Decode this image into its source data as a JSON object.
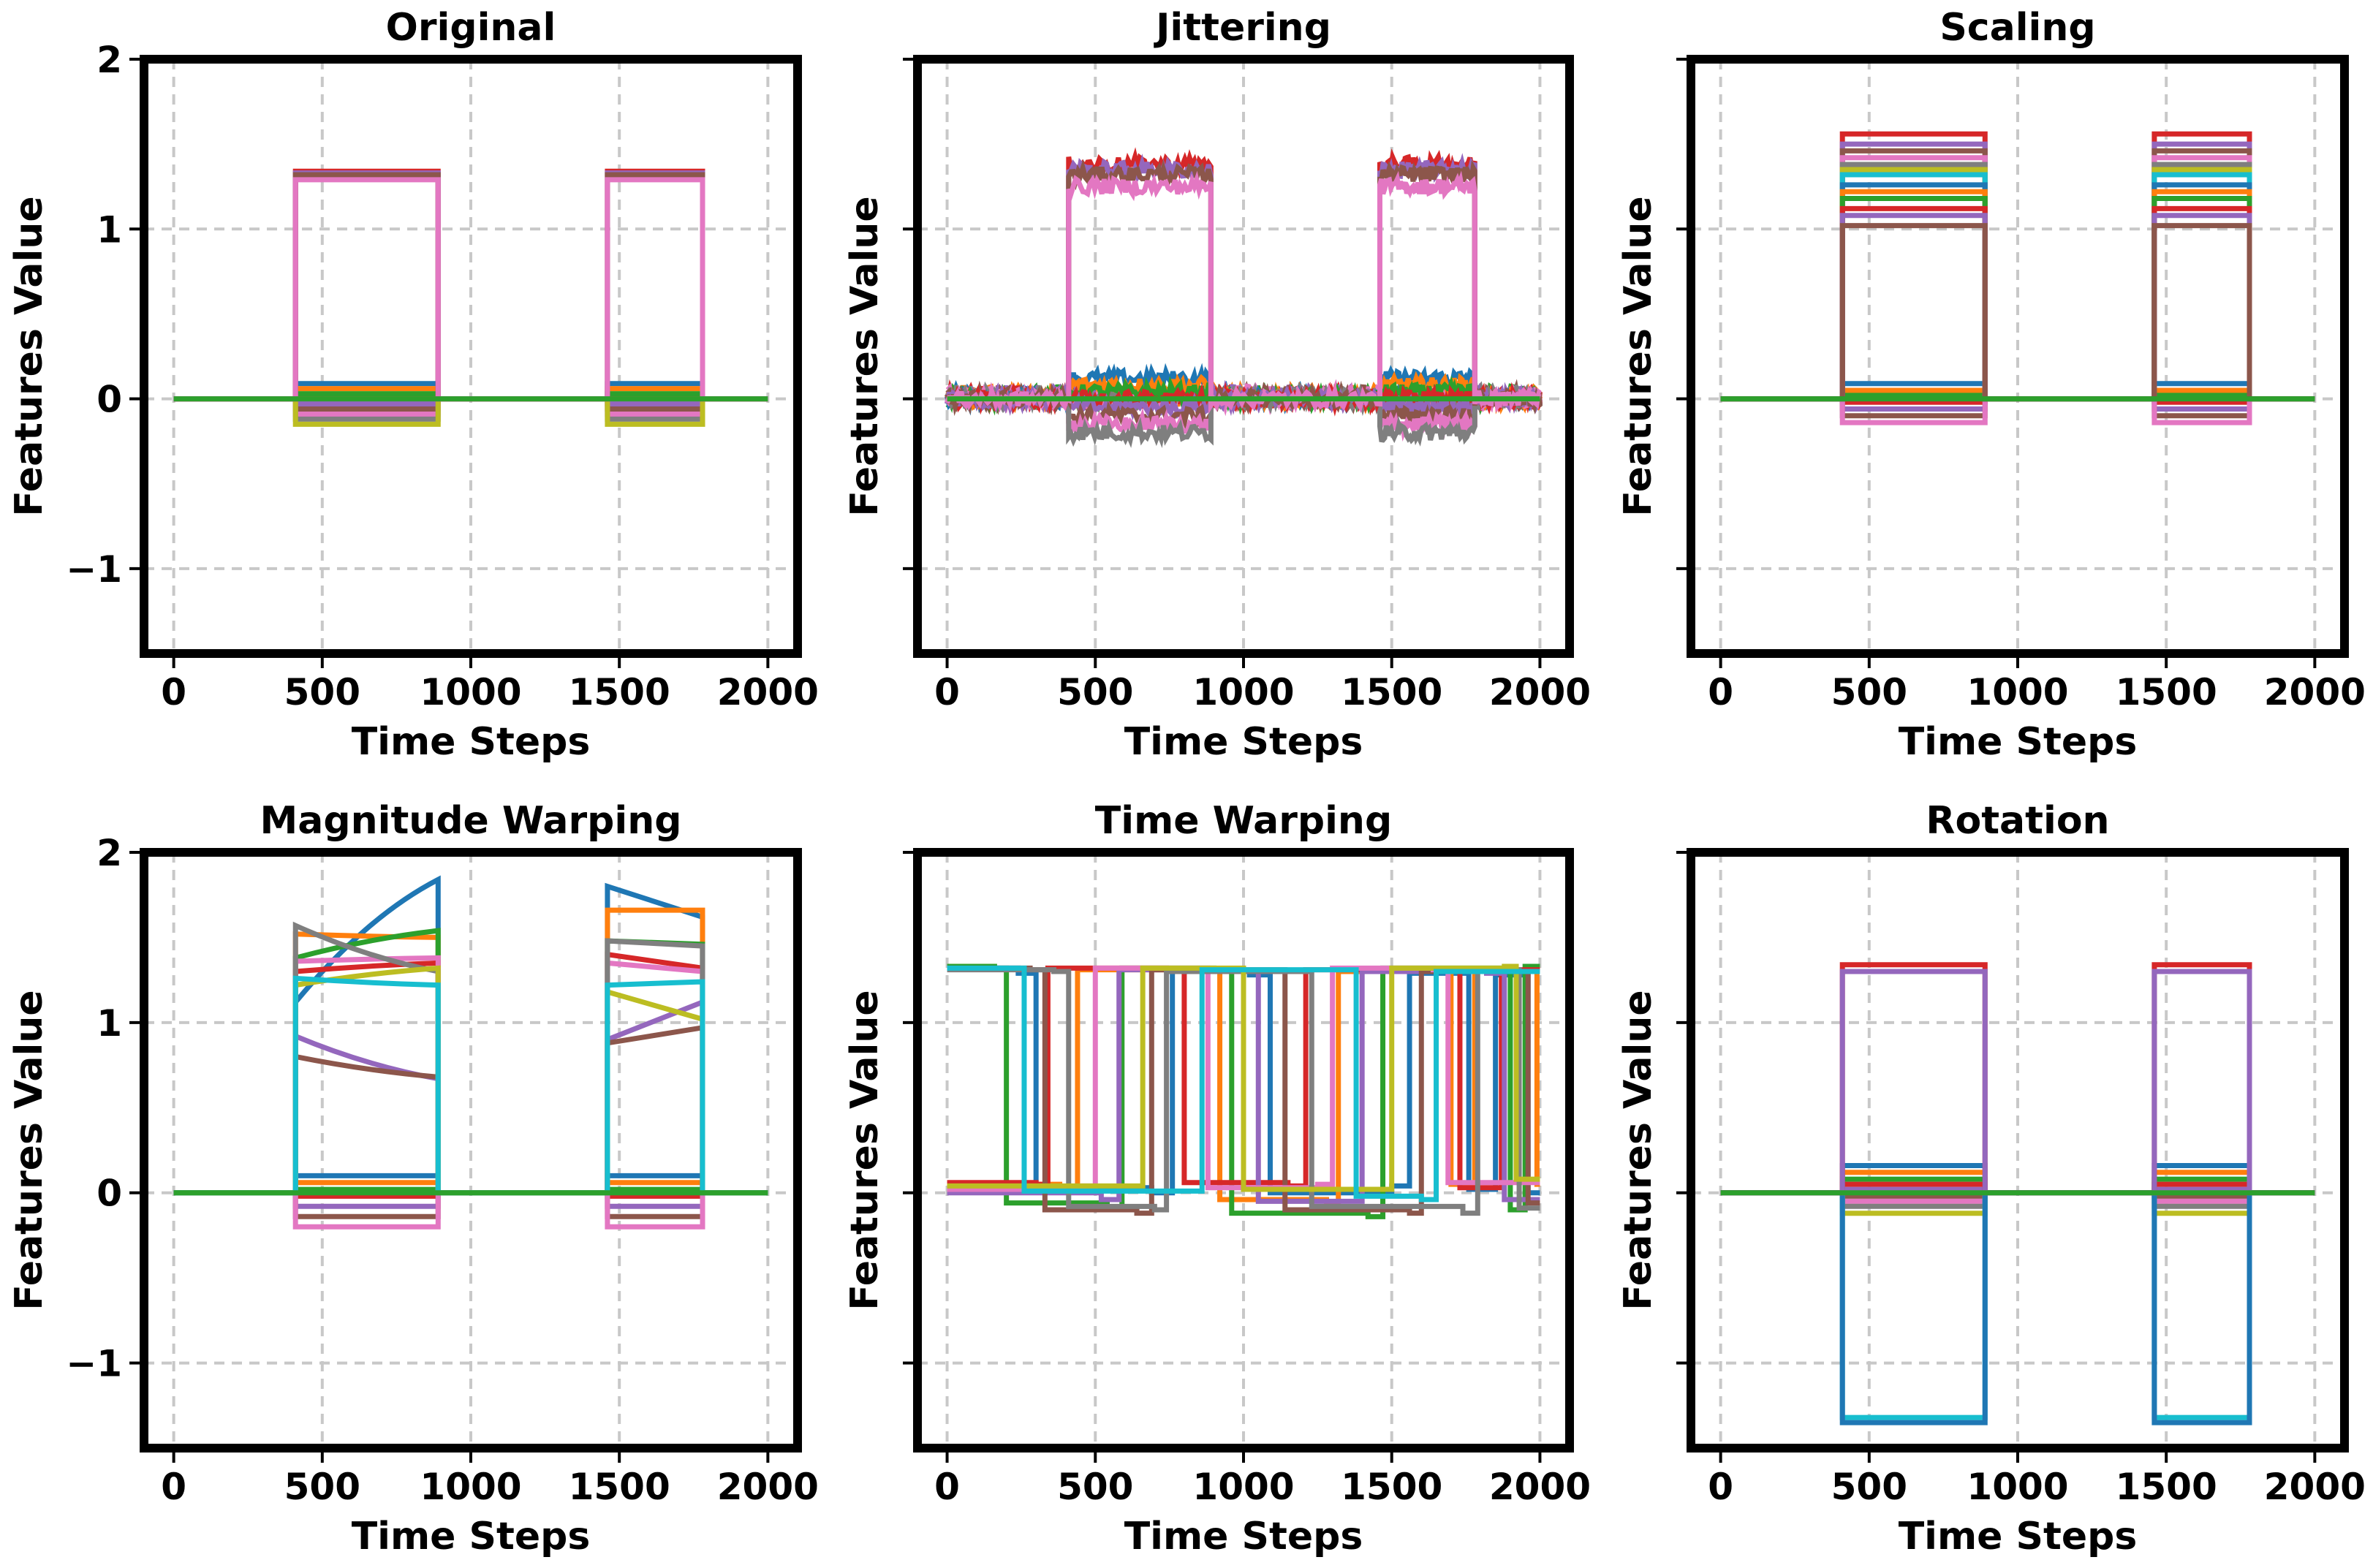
{
  "chart_data": [
    {
      "type": "line",
      "title": "Original",
      "xlabel": "Time Steps",
      "ylabel": "Features Value",
      "xlim": [
        -100,
        2100
      ],
      "ylim": [
        -1.5,
        2.0
      ],
      "xticks": [
        0,
        500,
        1000,
        1500,
        2000
      ],
      "yticks": [
        -1,
        0,
        1,
        2
      ],
      "show_ytick_labels": true,
      "grid": true,
      "pattern": "pulses",
      "pulses": [
        [
          410,
          890
        ],
        [
          1460,
          1780
        ]
      ],
      "pulse_high": [
        1.34,
        1.33,
        1.32,
        1.29
      ],
      "pulse_low": [
        0.09,
        0.06,
        0.03,
        0.0,
        -0.03,
        -0.06,
        -0.09,
        -0.12,
        -0.15
      ]
    },
    {
      "type": "line",
      "title": "Jittering",
      "xlabel": "Time Steps",
      "ylabel": "Features Value",
      "xlim": [
        -100,
        2100
      ],
      "ylim": [
        -1.5,
        2.0
      ],
      "xticks": [
        0,
        500,
        1000,
        1500,
        2000
      ],
      "yticks": [
        -1,
        0,
        1,
        2
      ],
      "show_ytick_labels": false,
      "grid": true,
      "pattern": "pulses",
      "pulses": [
        [
          410,
          890
        ],
        [
          1460,
          1780
        ]
      ],
      "pulse_high": [
        1.38,
        1.35,
        1.32,
        1.25
      ],
      "pulse_low": [
        0.12,
        0.08,
        0.04,
        0.0,
        -0.05,
        -0.1,
        -0.15,
        -0.2
      ],
      "noise": 0.045,
      "baseline_band": [
        -0.06,
        0.08
      ]
    },
    {
      "type": "line",
      "title": "Scaling",
      "xlabel": "Time Steps",
      "ylabel": "Features Value",
      "xlim": [
        -100,
        2100
      ],
      "ylim": [
        -1.5,
        2.0
      ],
      "xticks": [
        0,
        500,
        1000,
        1500,
        2000
      ],
      "yticks": [
        -1,
        0,
        1,
        2
      ],
      "show_ytick_labels": false,
      "grid": true,
      "pattern": "pulses",
      "pulses": [
        [
          410,
          890
        ],
        [
          1460,
          1780
        ]
      ],
      "pulse_high": [
        1.56,
        1.5,
        1.46,
        1.42,
        1.38,
        1.35,
        1.32,
        1.26,
        1.22,
        1.18,
        1.12,
        1.08,
        1.02
      ],
      "pulse_low": [
        0.09,
        0.05,
        0.02,
        -0.02,
        -0.06,
        -0.1,
        -0.14
      ]
    },
    {
      "type": "line",
      "title": "Magnitude Warping",
      "xlabel": "Time Steps",
      "ylabel": "Features Value",
      "xlim": [
        -100,
        2100
      ],
      "ylim": [
        -1.5,
        2.0
      ],
      "xticks": [
        0,
        500,
        1000,
        1500,
        2000
      ],
      "yticks": [
        -1,
        0,
        1,
        2
      ],
      "show_ytick_labels": true,
      "grid": true,
      "pattern": "warped_pulses",
      "pulses": [
        [
          410,
          890
        ],
        [
          1460,
          1780
        ]
      ],
      "warp_high": [
        [
          1.12,
          1.84,
          1.8,
          1.62
        ],
        [
          1.52,
          1.5,
          1.66,
          1.66
        ],
        [
          1.38,
          1.54,
          1.48,
          1.46
        ],
        [
          1.3,
          1.35,
          1.4,
          1.32
        ],
        [
          0.92,
          0.67,
          0.9,
          1.12
        ],
        [
          0.8,
          0.68,
          0.88,
          0.97
        ],
        [
          1.36,
          1.38,
          1.35,
          1.3
        ],
        [
          1.57,
          1.3,
          1.48,
          1.45
        ],
        [
          1.22,
          1.32,
          1.18,
          1.02
        ],
        [
          1.26,
          1.22,
          1.22,
          1.24
        ]
      ],
      "pulse_low": [
        0.1,
        0.06,
        0.02,
        -0.02,
        -0.08,
        -0.14,
        -0.2
      ]
    },
    {
      "type": "line",
      "title": "Time Warping",
      "xlabel": "Time Steps",
      "ylabel": "Features Value",
      "xlim": [
        -100,
        2100
      ],
      "ylim": [
        -1.5,
        2.0
      ],
      "xticks": [
        0,
        500,
        1000,
        1500,
        2000
      ],
      "yticks": [
        -1,
        0,
        1,
        2
      ],
      "show_ytick_labels": false,
      "grid": true,
      "pattern": "square_waves",
      "waves": [
        [
          [
            0,
            1.32
          ],
          [
            240,
            1.29
          ],
          [
            300,
            0.03
          ],
          [
            690,
            0.0
          ],
          [
            760,
            1.3
          ],
          [
            1020,
            1.28
          ],
          [
            1090,
            0.0
          ],
          [
            1500,
            0.04
          ],
          [
            1560,
            1.29
          ],
          [
            1760,
            0.02
          ],
          [
            1850,
            1.28
          ],
          [
            1960,
            0.0
          ]
        ],
        [
          [
            0,
            0.05
          ],
          [
            380,
            0.02
          ],
          [
            440,
            1.31
          ],
          [
            860,
            1.3
          ],
          [
            920,
            -0.04
          ],
          [
            1280,
            -0.06
          ],
          [
            1320,
            1.3
          ],
          [
            1700,
            0.05
          ],
          [
            1780,
            1.3
          ],
          [
            1990,
            0.05
          ]
        ],
        [
          [
            0,
            1.33
          ],
          [
            160,
            1.32
          ],
          [
            200,
            -0.06
          ],
          [
            540,
            -0.1
          ],
          [
            590,
            1.32
          ],
          [
            900,
            1.3
          ],
          [
            960,
            -0.12
          ],
          [
            1420,
            -0.14
          ],
          [
            1470,
            1.32
          ],
          [
            1900,
            -0.1
          ],
          [
            1950,
            1.33
          ]
        ],
        [
          [
            0,
            0.06
          ],
          [
            300,
            0.05
          ],
          [
            340,
            1.32
          ],
          [
            740,
            1.31
          ],
          [
            800,
            0.06
          ],
          [
            1150,
            0.04
          ],
          [
            1210,
            1.31
          ],
          [
            1680,
            1.3
          ],
          [
            1730,
            0.03
          ],
          [
            1870,
            1.31
          ],
          [
            2000,
            1.31
          ]
        ],
        [
          [
            0,
            0.0
          ],
          [
            520,
            -0.04
          ],
          [
            580,
            1.31
          ],
          [
            1000,
            1.3
          ],
          [
            1050,
            -0.05
          ],
          [
            1360,
            -0.05
          ],
          [
            1400,
            1.3
          ],
          [
            1820,
            1.29
          ],
          [
            1880,
            -0.04
          ],
          [
            2000,
            -0.04
          ]
        ],
        [
          [
            0,
            1.32
          ],
          [
            280,
            1.31
          ],
          [
            330,
            -0.1
          ],
          [
            640,
            -0.12
          ],
          [
            690,
            1.31
          ],
          [
            1100,
            1.31
          ],
          [
            1140,
            -0.1
          ],
          [
            1560,
            -0.12
          ],
          [
            1600,
            1.3
          ],
          [
            1960,
            -0.06
          ]
        ],
        [
          [
            0,
            0.02
          ],
          [
            460,
            0.04
          ],
          [
            500,
            1.32
          ],
          [
            820,
            1.32
          ],
          [
            880,
            0.03
          ],
          [
            1250,
            0.05
          ],
          [
            1300,
            1.32
          ],
          [
            1640,
            1.31
          ],
          [
            1690,
            0.06
          ],
          [
            2000,
            0.06
          ]
        ],
        [
          [
            0,
            1.31
          ],
          [
            360,
            1.3
          ],
          [
            410,
            -0.08
          ],
          [
            700,
            -0.1
          ],
          [
            740,
            1.3
          ],
          [
            1170,
            1.3
          ],
          [
            1230,
            -0.08
          ],
          [
            1740,
            -0.12
          ],
          [
            1790,
            1.31
          ],
          [
            1930,
            -0.09
          ]
        ],
        [
          [
            0,
            0.04
          ],
          [
            600,
            0.04
          ],
          [
            660,
            1.32
          ],
          [
            940,
            1.32
          ],
          [
            1000,
            0.02
          ],
          [
            1440,
            0.02
          ],
          [
            1500,
            1.32
          ],
          [
            1880,
            1.33
          ],
          [
            1920,
            0.08
          ],
          [
            2000,
            0.08
          ]
        ],
        [
          [
            0,
            1.32
          ],
          [
            200,
            1.32
          ],
          [
            260,
            0.01
          ],
          [
            800,
            0.01
          ],
          [
            860,
            1.31
          ],
          [
            1320,
            1.31
          ],
          [
            1380,
            -0.02
          ],
          [
            1600,
            -0.04
          ],
          [
            1650,
            1.3
          ],
          [
            2000,
            1.3
          ]
        ]
      ]
    },
    {
      "type": "line",
      "title": "Rotation",
      "xlabel": "Time Steps",
      "ylabel": "Features Value",
      "xlim": [
        -100,
        2100
      ],
      "ylim": [
        -1.5,
        2.0
      ],
      "xticks": [
        0,
        500,
        1000,
        1500,
        2000
      ],
      "yticks": [
        -1,
        0,
        1,
        2
      ],
      "show_ytick_labels": false,
      "grid": true,
      "pattern": "pulses",
      "pulses": [
        [
          410,
          890
        ],
        [
          1460,
          1780
        ]
      ],
      "pulse_high": [
        1.34,
        1.3
      ],
      "pulse_low": [
        0.16,
        0.12,
        0.08,
        0.05,
        0.02,
        -0.02,
        -0.05,
        -0.08,
        -0.12,
        -1.32,
        -1.35
      ]
    }
  ],
  "colors": [
    "#1f77b4",
    "#ff7f0e",
    "#2ca02c",
    "#d62728",
    "#9467bd",
    "#8c564b",
    "#e377c2",
    "#7f7f7f",
    "#bcbd22",
    "#17becf"
  ],
  "baseline_color": "#2ca02c",
  "grid_color": "#c8c8c8"
}
